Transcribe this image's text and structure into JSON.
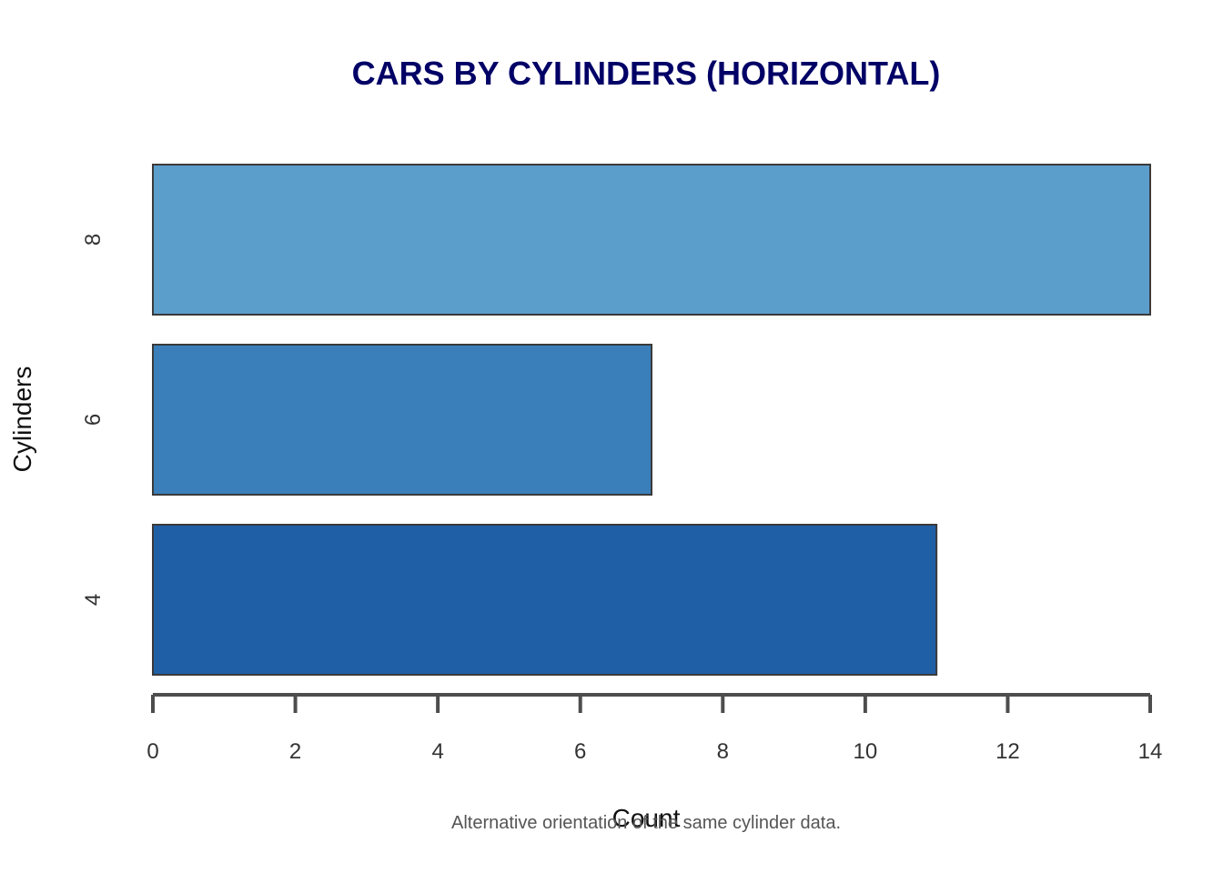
{
  "chart_data": {
    "type": "bar",
    "orientation": "horizontal",
    "title": "CARS BY CYLINDERS (HORIZONTAL)",
    "xlabel": "Count",
    "ylabel": "Cylinders",
    "caption": "Alternative orientation of the same cylinder data.",
    "categories": [
      "4",
      "6",
      "8"
    ],
    "values": [
      11,
      7,
      14
    ],
    "bar_colors": [
      "#1f5fa6",
      "#3a7fba",
      "#5b9ecc"
    ],
    "xlim": [
      0,
      14
    ],
    "xticks": [
      0,
      2,
      4,
      6,
      8,
      10,
      12,
      14
    ],
    "grid": false,
    "legend": "none"
  }
}
